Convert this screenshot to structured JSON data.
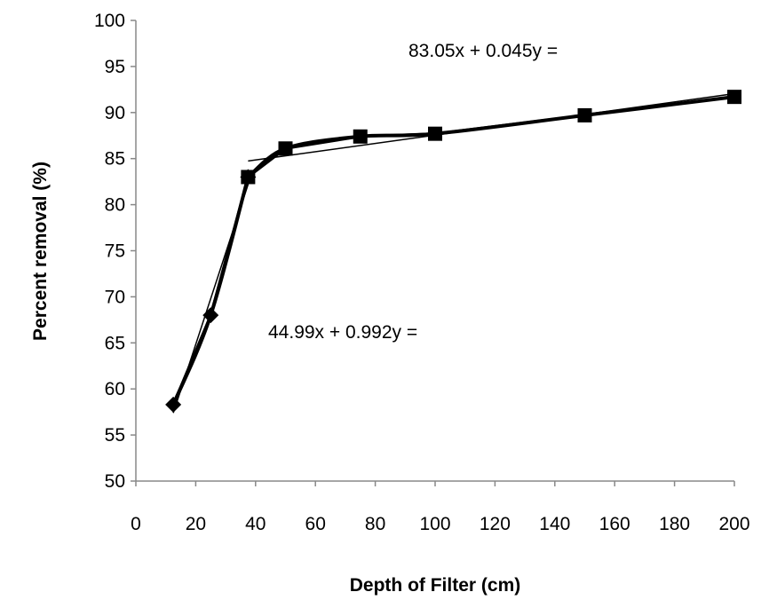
{
  "chart_data": {
    "type": "line",
    "title": "",
    "xlabel": "Depth of Filter (cm)",
    "ylabel": "Percent  removal (%)",
    "xlim": [
      0,
      200
    ],
    "ylim": [
      50,
      100
    ],
    "xticks": [
      0,
      20,
      40,
      60,
      80,
      100,
      120,
      140,
      160,
      180,
      200
    ],
    "yticks": [
      50,
      55,
      60,
      65,
      70,
      75,
      80,
      85,
      90,
      95,
      100
    ],
    "grid": false,
    "legend": "none",
    "series": [
      {
        "marker": "diamond",
        "color": "#000000",
        "x": [
          12.5,
          25,
          37.5
        ],
        "y": [
          58.3,
          68.0,
          83.0
        ]
      },
      {
        "marker": "square",
        "color": "#000000",
        "x": [
          37.5,
          50,
          75,
          100,
          150,
          200
        ],
        "y": [
          83.0,
          86.1,
          87.4,
          87.7,
          89.7,
          91.7
        ]
      }
    ],
    "trendlines": [
      {
        "label": "44.99x + 0.992y =",
        "intercept": 44.99,
        "slope": 0.992,
        "x_range": [
          12.5,
          37.5
        ]
      },
      {
        "label": "83.05x + 0.045y =",
        "intercept": 83.05,
        "slope": 0.045,
        "x_range": [
          37.5,
          200
        ]
      }
    ],
    "axis_color": "#888888"
  }
}
